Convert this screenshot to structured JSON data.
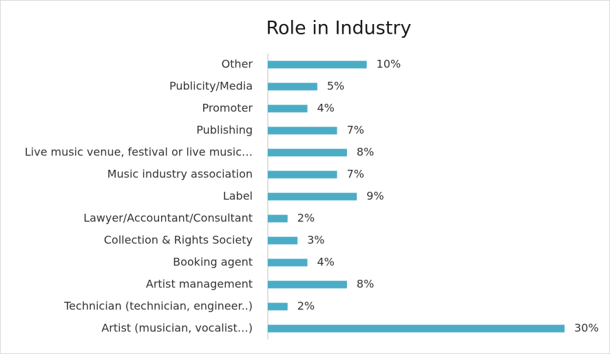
{
  "chart_data": {
    "type": "barh",
    "title": "Role in Industry",
    "categories": [
      "Other",
      "Publicity/Media",
      "Promoter",
      "Publishing",
      "Live music venue, festival or live music…",
      "Music industry association",
      "Label",
      "Lawyer/Accountant/Consultant",
      "Collection & Rights Society",
      "Booking agent",
      "Artist management",
      "Technician (technician, engineer..)",
      "Artist (musician, vocalist…)"
    ],
    "values": [
      10,
      5,
      4,
      7,
      8,
      7,
      9,
      2,
      3,
      4,
      8,
      2,
      30
    ],
    "value_labels": [
      "10%",
      "5%",
      "4%",
      "7%",
      "8%",
      "7%",
      "9%",
      "2%",
      "3%",
      "4%",
      "8%",
      "2%",
      "30%"
    ],
    "color": "#4bacc6"
  }
}
